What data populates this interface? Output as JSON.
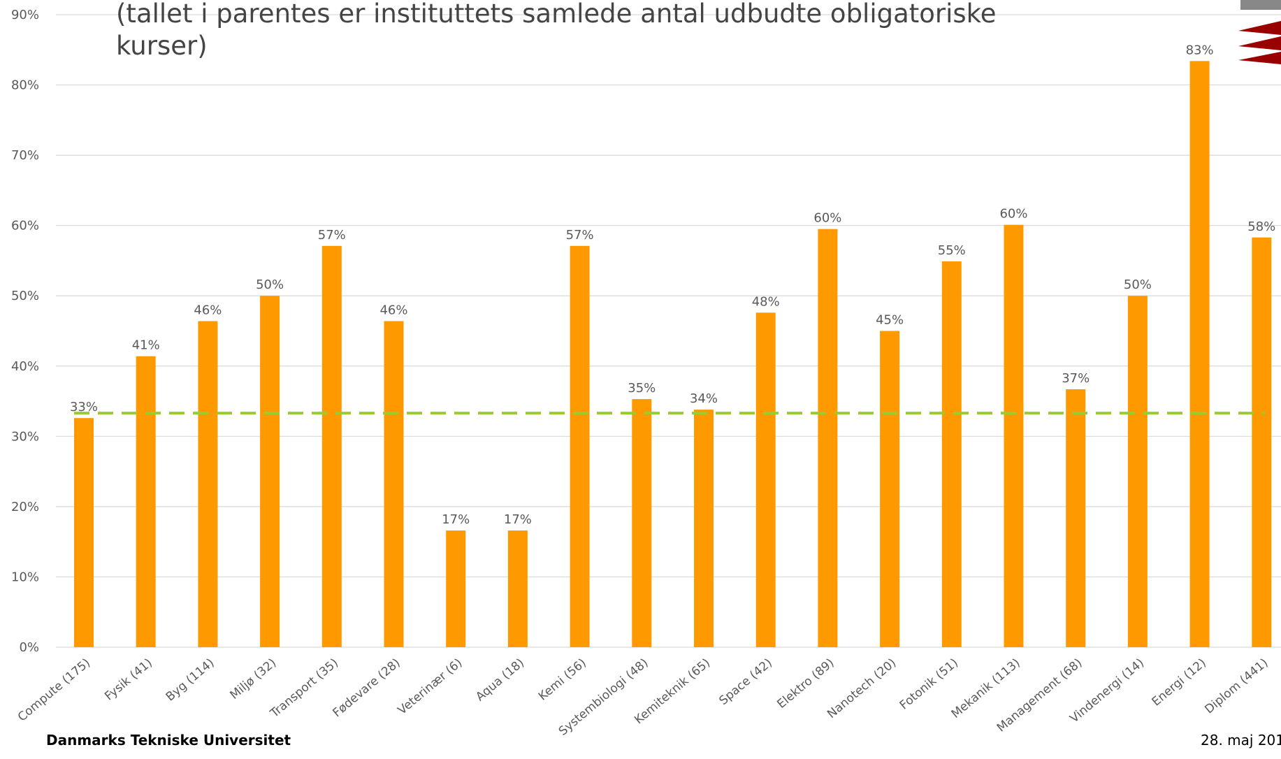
{
  "chart_data": {
    "type": "bar",
    "title": "(tallet i parentes er instituttets samlede antal udbudte obligatoriske kurser)",
    "categories": [
      "Compute (175)",
      "Fysik (41)",
      "Byg (114)",
      "Miljø (32)",
      "Transport (35)",
      "Fødevare (28)",
      "Veterinær (6)",
      "Aqua (18)",
      "Kemi (56)",
      "Systembiologi (48)",
      "Kemiteknik (65)",
      "Space (42)",
      "Elektro (89)",
      "Nanotech (20)",
      "Fotonik (51)",
      "Mekanik (113)",
      "Management (68)",
      "Vindenergi (14)",
      "Energi  (12)",
      "Diplom (441)"
    ],
    "values": [
      32.6,
      41.4,
      46.4,
      50,
      57.1,
      46.4,
      16.6,
      16.6,
      57.1,
      35.3,
      33.8,
      47.6,
      59.5,
      45,
      54.9,
      60.1,
      36.7,
      50,
      83.4,
      58.3
    ],
    "value_labels": [
      "33%",
      "41%",
      "46%",
      "50%",
      "57%",
      "46%",
      "17%",
      "17%",
      "57%",
      "35%",
      "34%",
      "48%",
      "60%",
      "45%",
      "55%",
      "60%",
      "37%",
      "50%",
      "83%",
      "58%"
    ],
    "color": "#ff9900",
    "reference_line": {
      "value": 33.3,
      "color": "#99cc33"
    },
    "ylim": [
      0,
      90
    ],
    "yticks": [
      {
        "value": 0,
        "label": "0%"
      },
      {
        "value": 10,
        "label": "10%"
      },
      {
        "value": 20,
        "label": "20%"
      },
      {
        "value": 30,
        "label": "30%"
      },
      {
        "value": 40,
        "label": "40%"
      },
      {
        "value": 50,
        "label": "50%"
      },
      {
        "value": 60,
        "label": "60%"
      },
      {
        "value": 70,
        "label": "70%"
      },
      {
        "value": 80,
        "label": "80%"
      },
      {
        "value": 90,
        "label": "90%"
      }
    ],
    "grid": true
  },
  "footer": {
    "left": "Danmarks Tekniske Universitet",
    "right": "28. maj 201"
  }
}
